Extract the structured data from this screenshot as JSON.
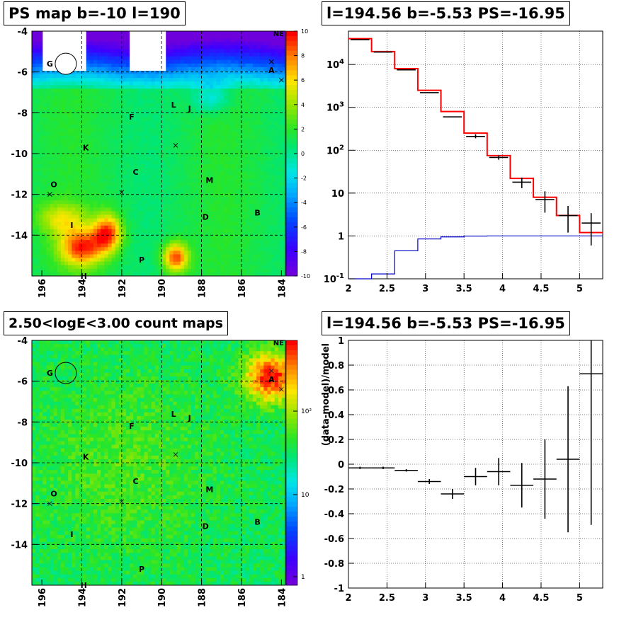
{
  "panels": {
    "ps_map": {
      "title": "PS map b=-10 l=190",
      "x_ticks": [
        "196",
        "194",
        "192",
        "190",
        "188",
        "186",
        "184"
      ],
      "y_ticks": [
        "-4",
        "-6",
        "-8",
        "-10",
        "-12",
        "-14"
      ],
      "colorbar_ticks": [
        "10",
        "8",
        "6",
        "4",
        "2",
        "0",
        "-2",
        "-4",
        "-6",
        "-8",
        "-10"
      ],
      "corner_label": "NE",
      "labels": [
        {
          "text": "G",
          "lon": 195.6,
          "lat": -5.6
        },
        {
          "text": "A",
          "lon": 184.5,
          "lat": -5.9
        },
        {
          "text": "L",
          "lon": 189.4,
          "lat": -7.6
        },
        {
          "text": "J",
          "lon": 188.6,
          "lat": -7.8
        },
        {
          "text": "F",
          "lon": 191.5,
          "lat": -8.2
        },
        {
          "text": "K",
          "lon": 193.8,
          "lat": -9.7
        },
        {
          "text": "C",
          "lon": 191.3,
          "lat": -10.9
        },
        {
          "text": "M",
          "lon": 187.6,
          "lat": -11.3
        },
        {
          "text": "O",
          "lon": 195.4,
          "lat": -11.5
        },
        {
          "text": "D",
          "lon": 187.8,
          "lat": -13.1
        },
        {
          "text": "B",
          "lon": 185.2,
          "lat": -12.9
        },
        {
          "text": "I",
          "lon": 194.5,
          "lat": -13.5
        },
        {
          "text": "P",
          "lon": 191.0,
          "lat": -15.2
        },
        {
          "text": "H",
          "lon": 193.9,
          "lat": -16.0
        }
      ]
    },
    "count_map": {
      "title": "2.50<logE<3.00 count maps",
      "x_ticks": [
        "196",
        "194",
        "192",
        "190",
        "188",
        "186",
        "184"
      ],
      "y_ticks": [
        "-4",
        "-6",
        "-8",
        "-10",
        "-12",
        "-14"
      ],
      "colorbar_ticks": [
        "10²",
        "10",
        "1"
      ],
      "corner_label": "NE"
    },
    "spectrum": {
      "title": "l=194.56 b=-5.53 PS=-16.95"
    },
    "residual": {
      "title": "l=194.56 b=-5.53 PS=-16.95"
    }
  },
  "chart_data": [
    {
      "type": "heatmap",
      "title": "PS map b=-10 l=190",
      "xlim": [
        196.5,
        183.8
      ],
      "ylim": [
        -4,
        -16
      ],
      "zlim": [
        -10,
        10
      ],
      "description_regions": [
        {
          "region": "top band (b>-6.5)",
          "value_range": [
            -10,
            -4
          ]
        },
        {
          "region": "central field",
          "value_range": [
            0,
            3
          ]
        },
        {
          "region": "bottom-left hotspots (l 191-195, b -13 to -16)",
          "value_range": [
            6,
            10
          ]
        }
      ],
      "markers": [
        {
          "lon": 195.6,
          "lat": -12.0
        },
        {
          "lon": 192.0,
          "lat": -11.9
        },
        {
          "lon": 189.3,
          "lat": -9.6
        },
        {
          "lon": 184.5,
          "lat": -5.5
        },
        {
          "lon": 184.0,
          "lat": -6.4
        }
      ],
      "circle": {
        "lon": 194.8,
        "lat": -5.6
      }
    },
    {
      "type": "heatmap",
      "title": "2.50<logE<3.00 count maps",
      "xlim": [
        196.5,
        183.8
      ],
      "ylim": [
        -4,
        -16
      ],
      "zscale": "log",
      "zlim": [
        0.7,
        300
      ],
      "hotspot": {
        "lon": 184.5,
        "lat": -5.8
      },
      "circle": {
        "lon": 194.8,
        "lat": -5.6
      }
    },
    {
      "type": "line",
      "title": "l=194.56 b=-5.53 PS=-16.95",
      "xlim": [
        2,
        5.3
      ],
      "ylim": [
        0.1,
        60000
      ],
      "yscale": "log",
      "x_ticks": [
        2,
        2.5,
        3,
        3.5,
        4,
        4.5,
        5
      ],
      "y_ticks": [
        "10^-1",
        "1",
        "10",
        "10^2",
        "10^3",
        "10^4"
      ],
      "bin_edges": [
        2.0,
        2.3,
        2.6,
        2.9,
        3.2,
        3.5,
        3.8,
        4.1,
        4.4,
        4.7,
        5.0,
        5.3
      ],
      "series": [
        {
          "name": "",
          "color": "#ff0000",
          "values": [
            40000,
            20000,
            8000,
            2500,
            800,
            250,
            75,
            22,
            8,
            3,
            1.2
          ]
        },
        {
          "name": "",
          "color": "#0000cc",
          "values": [
            0.1,
            0.13,
            0.45,
            0.85,
            0.95,
            0.99,
            1.0,
            1.0,
            1.0,
            1.0,
            1.0
          ]
        },
        {
          "name": "",
          "color": "#000000",
          "values": [
            38000,
            19500,
            7500,
            2200,
            600,
            210,
            68,
            18,
            7,
            3,
            2
          ],
          "err_low": [
            0,
            0,
            0,
            0,
            0,
            20,
            8,
            5,
            3.5,
            1.8,
            1.4
          ],
          "err_high": [
            0,
            0,
            0,
            0,
            0,
            25,
            8,
            5,
            4,
            2,
            1.4
          ]
        }
      ]
    },
    {
      "type": "scatter",
      "title": "l=194.56 b=-5.53 PS=-16.95",
      "ylabel": "(data-model)/model",
      "xlim": [
        2,
        5.3
      ],
      "ylim": [
        -1,
        1
      ],
      "x_ticks": [
        2,
        2.5,
        3,
        3.5,
        4,
        4.5,
        5
      ],
      "y_ticks": [
        -1,
        -0.8,
        -0.6,
        -0.4,
        -0.2,
        0,
        0.2,
        0.4,
        0.6,
        0.8,
        1
      ],
      "x": [
        2.15,
        2.45,
        2.75,
        3.05,
        3.35,
        3.65,
        3.95,
        4.25,
        4.55,
        4.85,
        5.15
      ],
      "y": [
        -0.03,
        -0.03,
        -0.05,
        -0.14,
        -0.24,
        -0.1,
        -0.06,
        -0.17,
        -0.12,
        0.04,
        0.73
      ],
      "err": [
        0.01,
        0.01,
        0.01,
        0.02,
        0.04,
        0.07,
        0.11,
        0.18,
        0.32,
        0.59,
        1.22
      ]
    }
  ]
}
